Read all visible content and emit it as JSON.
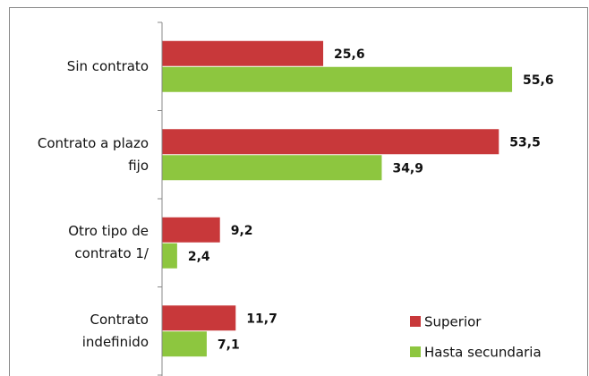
{
  "chart_data": {
    "type": "hbar",
    "categories": [
      "Sin contrato",
      "Contrato a plazo fijo",
      "Otro tipo de contrato 1/",
      "Contrato indefinido"
    ],
    "series": [
      {
        "name": "Superior",
        "color": "#c8383a",
        "values": [
          25.6,
          53.5,
          9.2,
          11.7
        ],
        "value_labels": [
          "25,6",
          "53,5",
          "9,2",
          "11,7"
        ]
      },
      {
        "name": "Hasta secundaria",
        "color": "#8dc63f",
        "values": [
          55.6,
          34.9,
          2.4,
          7.1
        ],
        "value_labels": [
          "55,6",
          "34,9",
          "2,4",
          "7,1"
        ]
      }
    ],
    "xlim": [
      0,
      60
    ],
    "legend": "lower right"
  }
}
